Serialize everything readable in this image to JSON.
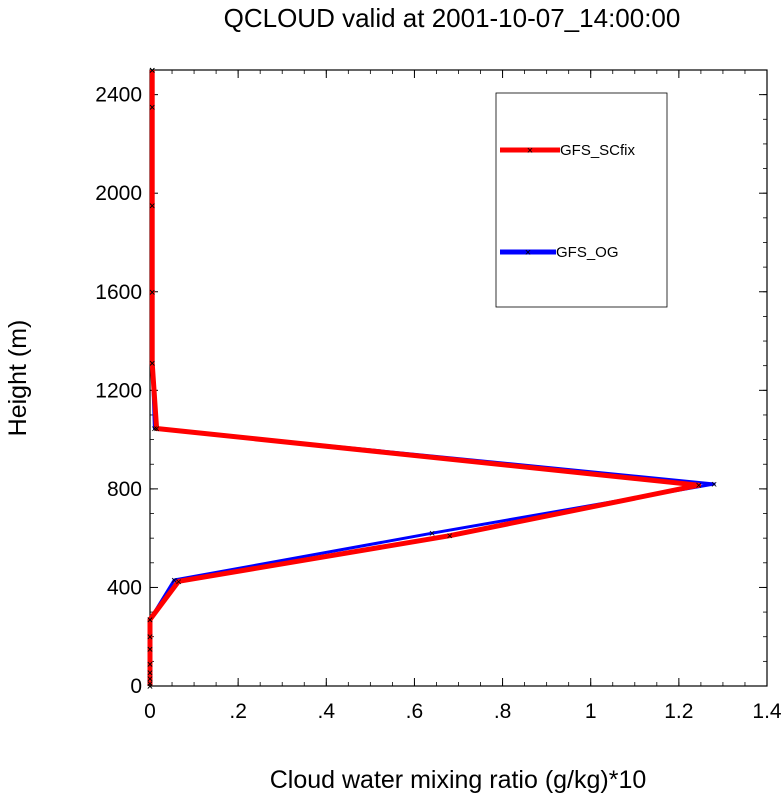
{
  "chart_data": {
    "type": "line",
    "title": "QCLOUD valid at 2001-10-07_14:00:00",
    "xlabel": "Cloud water mixing ratio (g/kg)*10",
    "ylabel": "Height (m)",
    "xlim": [
      0,
      1.4
    ],
    "ylim": [
      0,
      2500
    ],
    "x_ticks": [
      0,
      0.2,
      0.4,
      0.6,
      0.8,
      1.0,
      1.2,
      1.4
    ],
    "x_tick_labels": [
      "0",
      ".2",
      ".4",
      ".6",
      ".8",
      "1",
      "1.2",
      "1.4"
    ],
    "y_ticks": [
      0,
      400,
      800,
      1200,
      1600,
      2000,
      2400
    ],
    "y_tick_labels": [
      "0",
      "400",
      "800",
      "1200",
      "1600",
      "2000",
      "2400"
    ],
    "legend_position": "top-right",
    "grid": false,
    "series": [
      {
        "name": "GFS_OG",
        "color": "#0000ff",
        "x": [
          0,
          0,
          0,
          0,
          0,
          0,
          0,
          0,
          0.055,
          0.64,
          1.28,
          0.01,
          0.005,
          0.005,
          0.005,
          0.005,
          0.005,
          0.005
        ],
        "y": [
          0,
          10,
          30,
          55,
          90,
          150,
          200,
          270,
          430,
          620,
          820,
          1045,
          1310,
          1600,
          1950,
          2350,
          2500,
          2500
        ]
      },
      {
        "name": "GFS_SCfix",
        "color": "#ff0000",
        "x": [
          0,
          0,
          0,
          0,
          0,
          0,
          0,
          0,
          0.065,
          0.68,
          1.245,
          0.015,
          0.005,
          0.005,
          0.005,
          0.005,
          0.005,
          0.005
        ],
        "y": [
          0,
          10,
          30,
          55,
          90,
          150,
          200,
          270,
          425,
          610,
          815,
          1045,
          1310,
          1600,
          1950,
          2350,
          2500,
          2500
        ]
      }
    ]
  }
}
